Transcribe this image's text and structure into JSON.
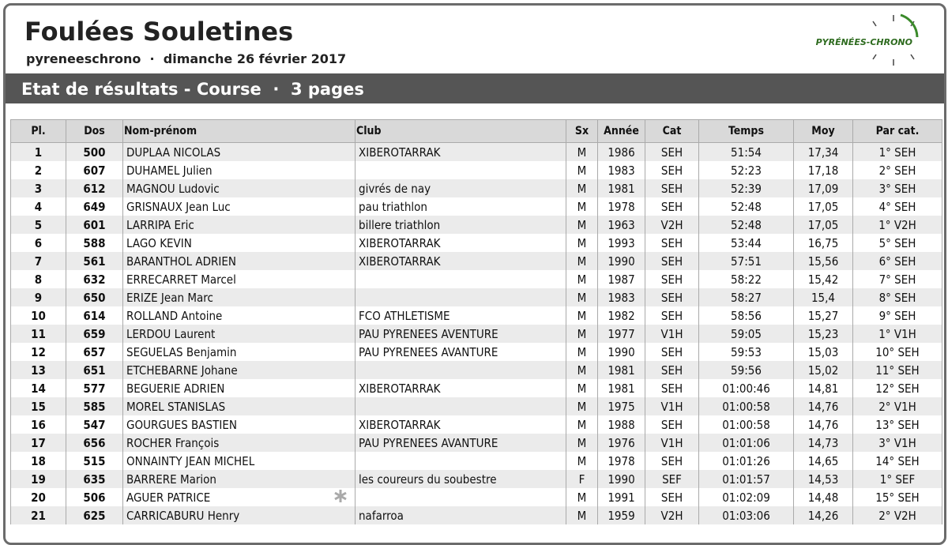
{
  "header": {
    "title": "Foulées Souletines",
    "organizer": "pyreneeschrono",
    "separator": "·",
    "date": "dimanche 26 février 2017",
    "logo": "PYRÉNÉES-CHRONO"
  },
  "banner": {
    "title": "Etat de résultats - Course",
    "separator": "·",
    "pages": "3 pages"
  },
  "table": {
    "columns": [
      "Pl.",
      "Dos",
      "Nom-prénom",
      "Club",
      "Sx",
      "Année",
      "Cat",
      "Temps",
      "Moy",
      "Par cat."
    ],
    "rows": [
      [
        "1",
        "500",
        "DUPLAA NICOLAS",
        "XIBEROTARRAK",
        "M",
        "1986",
        "SEH",
        "51:54",
        "17,34",
        "1° SEH"
      ],
      [
        "2",
        "607",
        "DUHAMEL Julien",
        "",
        "M",
        "1983",
        "SEH",
        "52:23",
        "17,18",
        "2° SEH"
      ],
      [
        "3",
        "612",
        "MAGNOU Ludovic",
        "givrés de nay",
        "M",
        "1981",
        "SEH",
        "52:39",
        "17,09",
        "3° SEH"
      ],
      [
        "4",
        "649",
        "GRISNAUX Jean Luc",
        "pau triathlon",
        "M",
        "1978",
        "SEH",
        "52:48",
        "17,05",
        "4° SEH"
      ],
      [
        "5",
        "601",
        "LARRIPA Eric",
        "billere triathlon",
        "M",
        "1963",
        "V2H",
        "52:48",
        "17,05",
        "1° V2H"
      ],
      [
        "6",
        "588",
        "LAGO KEVIN",
        "XIBEROTARRAK",
        "M",
        "1993",
        "SEH",
        "53:44",
        "16,75",
        "5° SEH"
      ],
      [
        "7",
        "561",
        "BARANTHOL ADRIEN",
        "XIBEROTARRAK",
        "M",
        "1990",
        "SEH",
        "57:51",
        "15,56",
        "6° SEH"
      ],
      [
        "8",
        "632",
        "ERRECARRET Marcel",
        "",
        "M",
        "1987",
        "SEH",
        "58:22",
        "15,42",
        "7° SEH"
      ],
      [
        "9",
        "650",
        "ERIZE Jean Marc",
        "",
        "M",
        "1983",
        "SEH",
        "58:27",
        "15,4",
        "8° SEH"
      ],
      [
        "10",
        "614",
        "ROLLAND Antoine",
        "FCO ATHLETISME",
        "M",
        "1982",
        "SEH",
        "58:56",
        "15,27",
        "9° SEH"
      ],
      [
        "11",
        "659",
        "LERDOU Laurent",
        "PAU PYRENEES AVENTURE",
        "M",
        "1977",
        "V1H",
        "59:05",
        "15,23",
        "1° V1H"
      ],
      [
        "12",
        "657",
        "SEGUELAS Benjamin",
        "PAU PYRENEES AVANTURE",
        "M",
        "1990",
        "SEH",
        "59:53",
        "15,03",
        "10° SEH"
      ],
      [
        "13",
        "651",
        "ETCHEBARNE Johane",
        "",
        "M",
        "1981",
        "SEH",
        "59:56",
        "15,02",
        "11° SEH"
      ],
      [
        "14",
        "577",
        "BEGUERIE ADRIEN",
        "XIBEROTARRAK",
        "M",
        "1981",
        "SEH",
        "01:00:46",
        "14,81",
        "12° SEH"
      ],
      [
        "15",
        "585",
        "MOREL STANISLAS",
        "",
        "M",
        "1975",
        "V1H",
        "01:00:58",
        "14,76",
        "2° V1H"
      ],
      [
        "16",
        "547",
        "GOURGUES BASTIEN",
        "XIBEROTARRAK",
        "M",
        "1988",
        "SEH",
        "01:00:58",
        "14,76",
        "13° SEH"
      ],
      [
        "17",
        "656",
        "ROCHER François",
        "PAU PYRENEES AVANTURE",
        "M",
        "1976",
        "V1H",
        "01:01:06",
        "14,73",
        "3° V1H"
      ],
      [
        "18",
        "515",
        "ONNAINTY JEAN MICHEL",
        "",
        "M",
        "1978",
        "SEH",
        "01:01:26",
        "14,65",
        "14° SEH"
      ],
      [
        "19",
        "635",
        "BARRERE Marion",
        "les coureurs du soubestre",
        "F",
        "1990",
        "SEF",
        "01:01:57",
        "14,53",
        "1° SEF"
      ],
      [
        "20",
        "506",
        "AGUER PATRICE",
        "",
        "M",
        "1991",
        "SEH",
        "01:02:09",
        "14,48",
        "15° SEH"
      ],
      [
        "21",
        "625",
        "CARRICABURU Henry",
        "nafarroa",
        "M",
        "1959",
        "V2H",
        "01:03:06",
        "14,26",
        "2° V2H"
      ]
    ]
  }
}
